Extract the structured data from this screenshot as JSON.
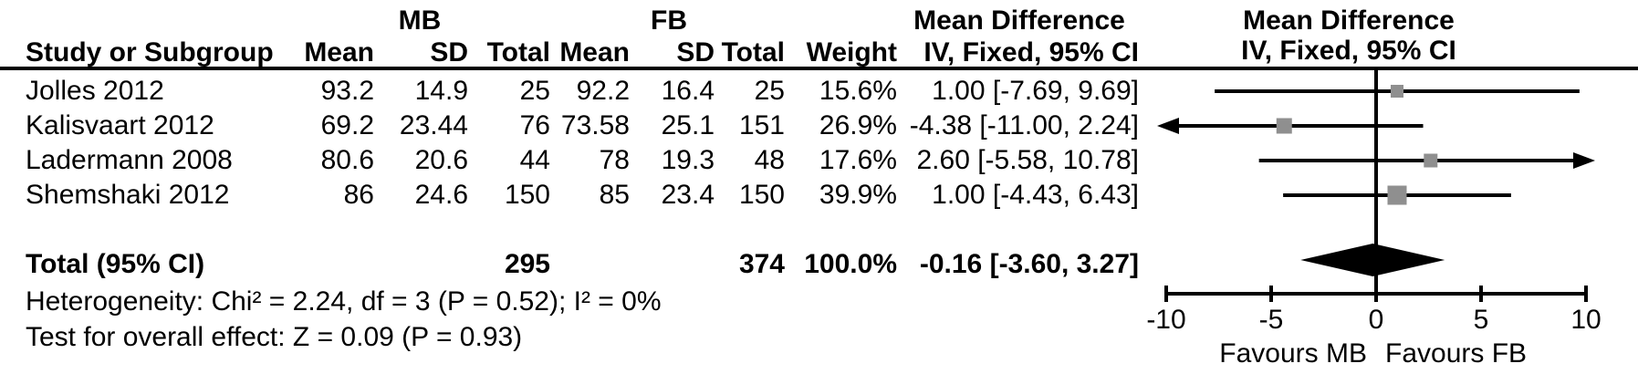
{
  "table": {
    "group_headers": {
      "mb": "MB",
      "fb": "FB",
      "md_stats": "Mean Difference",
      "md_plot": "Mean Difference"
    },
    "col_headers": {
      "study": "Study or Subgroup",
      "mean": "Mean",
      "sd": "SD",
      "total": "Total",
      "weight": "Weight",
      "ci": "IV, Fixed, 95% CI",
      "ci_plot": "IV, Fixed, 95% CI"
    },
    "rows": [
      {
        "study": "Jolles 2012",
        "mb_mean": "93.2",
        "mb_sd": "14.9",
        "mb_total": "25",
        "fb_mean": "92.2",
        "fb_sd": "16.4",
        "fb_total": "25",
        "weight": "15.6%",
        "ci": "1.00 [-7.69, 9.69]"
      },
      {
        "study": "Kalisvaart 2012",
        "mb_mean": "69.2",
        "mb_sd": "23.44",
        "mb_total": "76",
        "fb_mean": "73.58",
        "fb_sd": "25.1",
        "fb_total": "151",
        "weight": "26.9%",
        "ci": "-4.38 [-11.00, 2.24]"
      },
      {
        "study": "Ladermann 2008",
        "mb_mean": "80.6",
        "mb_sd": "20.6",
        "mb_total": "44",
        "fb_mean": "78",
        "fb_sd": "19.3",
        "fb_total": "48",
        "weight": "17.6%",
        "ci": "2.60 [-5.58, 10.78]"
      },
      {
        "study": "Shemshaki 2012",
        "mb_mean": "86",
        "mb_sd": "24.6",
        "mb_total": "150",
        "fb_mean": "85",
        "fb_sd": "23.4",
        "fb_total": "150",
        "weight": "39.9%",
        "ci": "1.00 [-4.43, 6.43]"
      }
    ],
    "total_row": {
      "label": "Total (95% CI)",
      "mb_total": "295",
      "fb_total": "374",
      "weight": "100.0%",
      "ci": "-0.16 [-3.60, 3.27]"
    },
    "heterogeneity": "Heterogeneity: Chi² = 2.24, df = 3 (P = 0.52); I² = 0%",
    "overall_effect": "Test for overall effect: Z = 0.09 (P = 0.93)"
  },
  "chart_data": {
    "type": "forest",
    "effect_measure": "Mean Difference, IV, Fixed, 95% CI",
    "x_axis": {
      "min": -10,
      "max": 10,
      "ticks": [
        -10,
        -5,
        0,
        5,
        10
      ],
      "left_label": "Favours MB",
      "right_label": "Favours FB"
    },
    "studies": [
      {
        "name": "Jolles 2012",
        "md": 1.0,
        "ci_low": -7.69,
        "ci_high": 9.69,
        "weight_pct": 15.6
      },
      {
        "name": "Kalisvaart 2012",
        "md": -4.38,
        "ci_low": -11.0,
        "ci_high": 2.24,
        "weight_pct": 26.9
      },
      {
        "name": "Ladermann 2008",
        "md": 2.6,
        "ci_low": -5.58,
        "ci_high": 10.78,
        "weight_pct": 17.6
      },
      {
        "name": "Shemshaki 2012",
        "md": 1.0,
        "ci_low": -4.43,
        "ci_high": 6.43,
        "weight_pct": 39.9
      }
    ],
    "total": {
      "md": -0.16,
      "ci_low": -3.6,
      "ci_high": 3.27,
      "weight_pct": 100.0
    },
    "marker_color": "#8f8f8f",
    "line_color": "#000000"
  }
}
